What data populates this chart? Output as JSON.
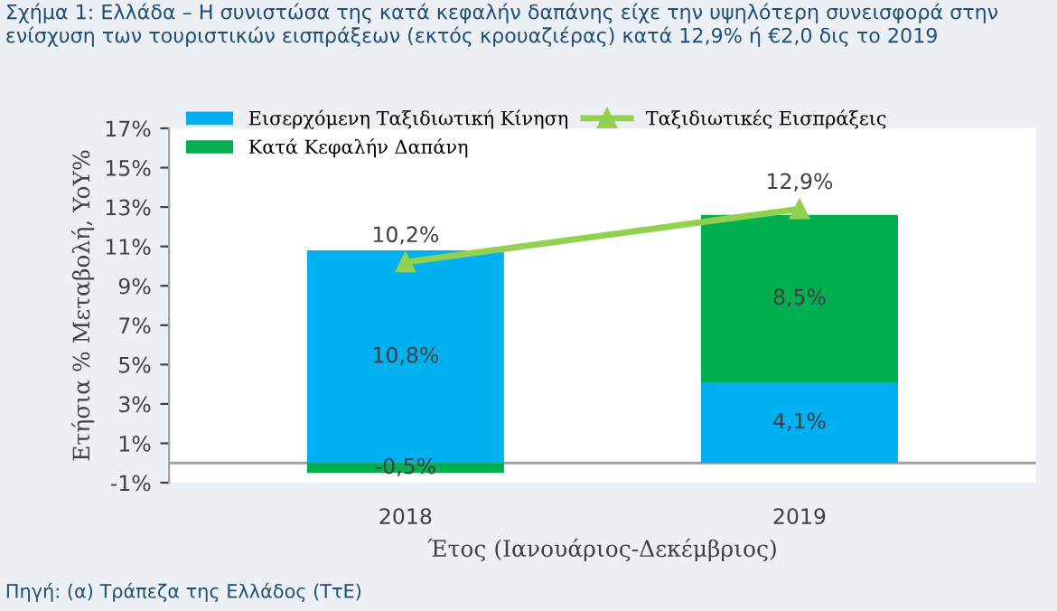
{
  "chart_data": {
    "type": "bar",
    "stacked": true,
    "title": "Σχήμα 1: Ελλάδα – Η συνιστώσα της κατά κεφαλήν δαπάνης είχε την υψηλότερη συνεισφορά στην ενίσχυση των τουριστικών εισπράξεων (εκτός κρουαζιέρας) κατά 12,9% ή €2,0 δις το 2019",
    "xlabel": "Έτος (Ιανουάριος-Δεκέμβριος)",
    "ylabel": "Ετήσια % Μεταβολή, YoY%",
    "categories": [
      "2018",
      "2019"
    ],
    "series": [
      {
        "name": "Εισερχόμενη Ταξιδιωτική Κίνηση",
        "color": "#00b0f0",
        "values": [
          10.8,
          4.1
        ],
        "value_labels": [
          "10,8%",
          "4,1%"
        ]
      },
      {
        "name": "Κατά Κεφαλήν Δαπάνη",
        "color": "#00b050",
        "values": [
          -0.5,
          8.5
        ],
        "value_labels": [
          "-0,5%",
          "8,5%"
        ]
      },
      {
        "name": "Ταξιδιωτικές Εισπράξεις",
        "type": "line",
        "color": "#92d050",
        "marker": "triangle",
        "values": [
          10.2,
          12.9
        ],
        "value_labels": [
          "10,2%",
          "12,9%"
        ]
      }
    ],
    "ylim": [
      -1,
      17
    ],
    "yticks": [
      {
        "value": -1,
        "label": "-1%"
      },
      {
        "value": 1,
        "label": "1%"
      },
      {
        "value": 3,
        "label": "3%"
      },
      {
        "value": 5,
        "label": "5%"
      },
      {
        "value": 7,
        "label": "7%"
      },
      {
        "value": 9,
        "label": "9%"
      },
      {
        "value": 11,
        "label": "11%"
      },
      {
        "value": 13,
        "label": "13%"
      },
      {
        "value": 15,
        "label": "15%"
      },
      {
        "value": 17,
        "label": "17%"
      }
    ],
    "grid": false,
    "legend": "top left",
    "annotations": [
      "Πηγή: (α) Τράπεζα της Ελλάδος (ΤτΕ)"
    ]
  }
}
